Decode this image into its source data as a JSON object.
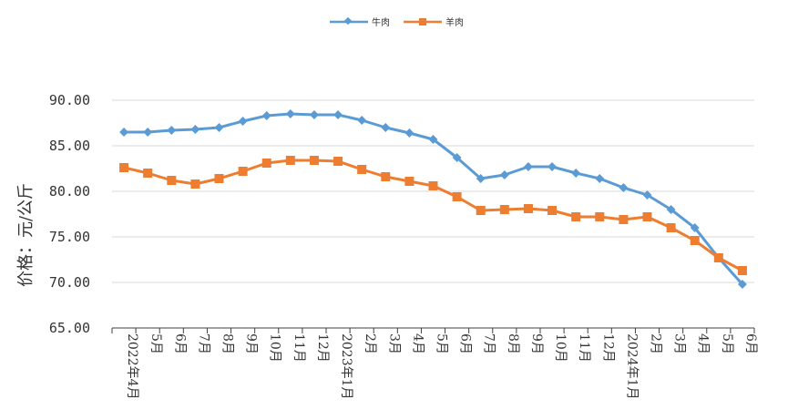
{
  "chart_data": {
    "type": "line",
    "title": "",
    "xlabel": "",
    "ylabel": "价格：元/公斤",
    "ylim": [
      65,
      90
    ],
    "yticks": [
      "65.00",
      "70.00",
      "75.00",
      "80.00",
      "85.00",
      "90.00"
    ],
    "grid": true,
    "legend_position": "top-center",
    "categories": [
      "2022年4月",
      "5月",
      "6月",
      "7月",
      "8月",
      "9月",
      "10月",
      "11月",
      "12月",
      "2023年1月",
      "2月",
      "3月",
      "4月",
      "5月",
      "6月",
      "7月",
      "8月",
      "9月",
      "10月",
      "11月",
      "12月",
      "2024年1月",
      "2月",
      "3月",
      "4月",
      "5月",
      "6月"
    ],
    "series": [
      {
        "name": "牛肉",
        "color": "#5b9bd5",
        "marker": "diamond",
        "values": [
          86.5,
          86.5,
          86.7,
          86.8,
          87.0,
          87.7,
          88.3,
          88.5,
          88.4,
          88.4,
          87.8,
          87.0,
          86.4,
          85.7,
          83.7,
          81.4,
          81.8,
          82.7,
          82.7,
          82.0,
          81.4,
          80.4,
          79.6,
          78.0,
          76.0,
          72.7,
          69.8
        ]
      },
      {
        "name": "羊肉",
        "color": "#ed7d31",
        "marker": "square",
        "values": [
          82.6,
          82.0,
          81.2,
          80.8,
          81.4,
          82.2,
          83.1,
          83.4,
          83.4,
          83.3,
          82.4,
          81.6,
          81.1,
          80.6,
          79.4,
          77.9,
          78.0,
          78.1,
          77.9,
          77.2,
          77.2,
          76.9,
          77.2,
          76.0,
          74.6,
          72.7,
          71.3
        ]
      }
    ]
  }
}
